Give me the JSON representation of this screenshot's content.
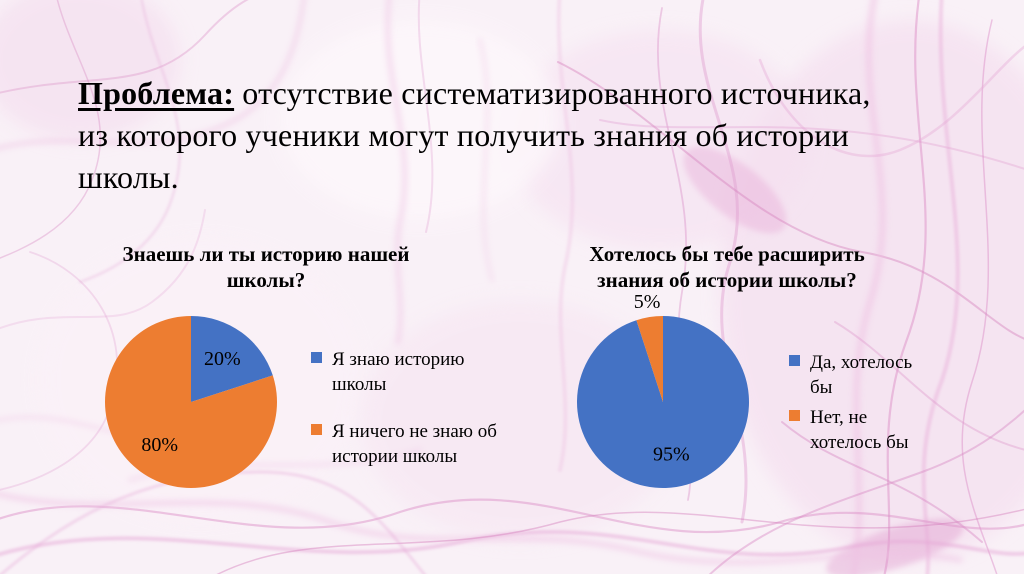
{
  "slide": {
    "title": {
      "lead": "Проблема:",
      "rest": "отсутствие систематизированного источника, из которого ученики могут получить знания об истории школы."
    }
  },
  "chart_data": [
    {
      "type": "pie",
      "title": "Знаешь ли ты историю нашей школы?",
      "legend_position": "right",
      "start_angle_deg": 0,
      "direction": "clockwise",
      "slices": [
        {
          "label": "Я знаю историю школы",
          "value": 20,
          "pct_label": "20%",
          "color": "#4472C4",
          "label_position": "inside"
        },
        {
          "label": "Я ничего не знаю об истории школы",
          "value": 80,
          "pct_label": "80%",
          "color": "#ED7D31",
          "label_position": "inside"
        }
      ]
    },
    {
      "type": "pie",
      "title": "Хотелось бы тебе расширить знания об истории школы?",
      "legend_position": "right",
      "start_angle_deg": 0,
      "direction": "clockwise",
      "slices": [
        {
          "label": "Да, хотелось бы",
          "value": 95,
          "pct_label": "95%",
          "color": "#4472C4",
          "label_position": "inside"
        },
        {
          "label": "Нет, не хотелось бы",
          "value": 5,
          "pct_label": "5%",
          "color": "#ED7D31",
          "label_position": "outside"
        }
      ]
    }
  ],
  "colors": {
    "series_blue": "#4472C4",
    "series_orange": "#ED7D31",
    "text": "#000000",
    "background_tint": "#f9f1f7",
    "texture_pink": "#d77ec0"
  }
}
